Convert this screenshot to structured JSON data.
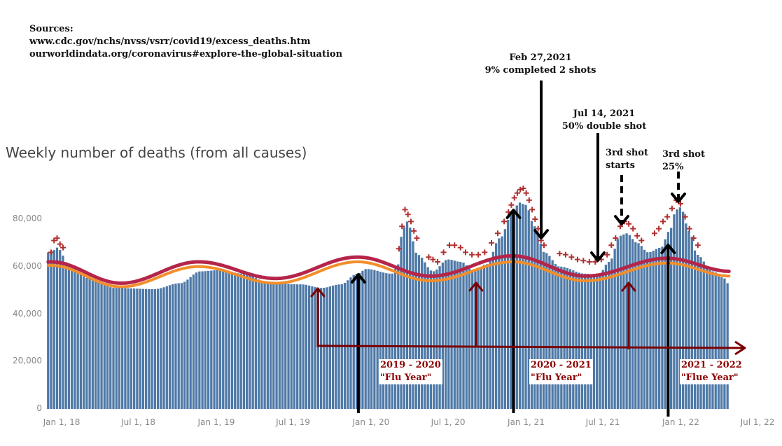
{
  "sources": {
    "heading": "Sources:",
    "line1": "www.cdc.gov/nchs/nvss/vsrr/covid19/excess_deaths.htm",
    "line2": "ourworldindata.org/coronavirus#explore-the-global-situation"
  },
  "annotations": {
    "feb": {
      "line1": "Feb 27,2021",
      "line2": "9% completed 2 shots"
    },
    "jul": {
      "line1": "Jul 14, 2021",
      "line2": "50% double shot"
    },
    "third1": {
      "line1": "3rd shot",
      "line2": "starts"
    },
    "third2": {
      "line1": "3rd shot",
      "line2": "25%"
    }
  },
  "flu_years": {
    "fy1": {
      "line1": "2019 - 2020",
      "line2": "\"Flu Year\""
    },
    "fy2": {
      "line1": "2020 - 2021",
      "line2": "\"Flu Year\""
    },
    "fy3": {
      "line1": "2021 - 2022",
      "line2": "\"Flue Year\""
    }
  },
  "colors": {
    "bar": "#4e79a7",
    "expected_line": "#f28e2b",
    "threshold_line": "#b5254a",
    "excess_marker": "#b03030",
    "arrow_black": "#000000",
    "arrow_red": "#7b0000"
  },
  "chart_data": {
    "type": "bar",
    "title": "Weekly number of deaths (from all causes)",
    "xlabel": "",
    "ylabel": "",
    "ylim": [
      0,
      90000
    ],
    "y_ticks": [
      0,
      20000,
      40000,
      60000,
      80000
    ],
    "y_tick_labels": [
      "0",
      "20,000",
      "40,000",
      "60,000",
      "80,000"
    ],
    "x_ticks": [
      "2018-01-01",
      "2018-07-01",
      "2019-01-01",
      "2019-07-01",
      "2020-01-01",
      "2020-07-01",
      "2021-01-01",
      "2021-07-01",
      "2022-01-01",
      "2022-07-01"
    ],
    "x_tick_labels": [
      "Jan 1, 18",
      "Jul 1, 18",
      "Jan 1, 19",
      "Jul 1, 19",
      "Jan 1, 20",
      "Jul 1, 20",
      "Jan 1, 21",
      "Jul 1, 21",
      "Jan 1, 22",
      "Jul 1, 22"
    ],
    "grid": false,
    "weekly_deaths_keyframes": [
      [
        "2018-01-01",
        66000
      ],
      [
        "2018-01-15",
        68000
      ],
      [
        "2018-02-15",
        60000
      ],
      [
        "2018-04-01",
        55000
      ],
      [
        "2018-06-01",
        51000
      ],
      [
        "2018-09-01",
        50500
      ],
      [
        "2018-11-01",
        53000
      ],
      [
        "2018-12-20",
        58000
      ],
      [
        "2019-02-01",
        58500
      ],
      [
        "2019-04-01",
        57000
      ],
      [
        "2019-06-01",
        53000
      ],
      [
        "2019-08-15",
        52500
      ],
      [
        "2019-10-01",
        51000
      ],
      [
        "2019-11-15",
        52500
      ],
      [
        "2019-12-25",
        57000
      ],
      [
        "2020-01-15",
        59000
      ],
      [
        "2020-03-15",
        57000
      ],
      [
        "2020-03-28",
        60000
      ],
      [
        "2020-04-10",
        76000
      ],
      [
        "2020-04-20",
        79000
      ],
      [
        "2020-05-15",
        65000
      ],
      [
        "2020-06-20",
        58000
      ],
      [
        "2020-07-25",
        63000
      ],
      [
        "2020-08-25",
        62000
      ],
      [
        "2020-09-25",
        58000
      ],
      [
        "2020-10-25",
        61000
      ],
      [
        "2020-11-25",
        72000
      ],
      [
        "2020-12-25",
        83000
      ],
      [
        "2021-01-10",
        87000
      ],
      [
        "2021-01-25",
        86000
      ],
      [
        "2021-02-15",
        77000
      ],
      [
        "2021-03-10",
        66000
      ],
      [
        "2021-04-15",
        60000
      ],
      [
        "2021-06-15",
        57000
      ],
      [
        "2021-07-15",
        56500
      ],
      [
        "2021-08-10",
        62000
      ],
      [
        "2021-09-05",
        73000
      ],
      [
        "2021-09-20",
        74000
      ],
      [
        "2021-10-15",
        70000
      ],
      [
        "2021-11-10",
        66000
      ],
      [
        "2021-12-10",
        68000
      ],
      [
        "2021-12-30",
        75000
      ],
      [
        "2022-01-15",
        84000
      ],
      [
        "2022-01-25",
        85000
      ],
      [
        "2022-02-15",
        75000
      ],
      [
        "2022-03-05",
        65000
      ],
      [
        "2022-04-10",
        58000
      ],
      [
        "2022-05-10",
        55000
      ],
      [
        "2022-05-22",
        51000
      ]
    ],
    "series": [
      {
        "name": "",
        "type": "line",
        "style": "threshold",
        "values": [
          [
            "2018-01-01",
            62000
          ],
          [
            "2018-06-15",
            53000
          ],
          [
            "2018-12-15",
            62000
          ],
          [
            "2019-06-15",
            55000
          ],
          [
            "2019-12-25",
            64000
          ],
          [
            "2020-06-15",
            56000
          ],
          [
            "2020-12-25",
            64500
          ],
          [
            "2021-06-15",
            56000
          ],
          [
            "2021-12-25",
            63500
          ],
          [
            "2022-05-22",
            58000
          ]
        ]
      },
      {
        "name": "",
        "type": "line",
        "style": "expected",
        "values": [
          [
            "2018-01-01",
            60500
          ],
          [
            "2018-06-15",
            51500
          ],
          [
            "2018-12-15",
            60000
          ],
          [
            "2019-06-15",
            53000
          ],
          [
            "2019-12-25",
            62000
          ],
          [
            "2020-06-15",
            54000
          ],
          [
            "2020-12-25",
            62000
          ],
          [
            "2021-06-15",
            54000
          ],
          [
            "2021-12-25",
            61500
          ],
          [
            "2022-05-22",
            56000
          ]
        ]
      },
      {
        "name": "",
        "type": "markers",
        "marker": "+",
        "values": [
          [
            "2018-01-01",
            66000
          ],
          [
            "2018-01-08",
            71000
          ],
          [
            "2018-01-15",
            72000
          ],
          [
            "2018-01-22",
            69500
          ],
          [
            "2018-01-29",
            68000
          ],
          [
            "2020-04-01",
            67500
          ],
          [
            "2020-04-08",
            77000
          ],
          [
            "2020-04-15",
            84000
          ],
          [
            "2020-04-22",
            82000
          ],
          [
            "2020-04-29",
            79000
          ],
          [
            "2020-05-06",
            75000
          ],
          [
            "2020-05-13",
            72000
          ],
          [
            "2020-06-10",
            64000
          ],
          [
            "2020-06-20",
            63000
          ],
          [
            "2020-07-01",
            62000
          ],
          [
            "2020-07-15",
            66000
          ],
          [
            "2020-07-29",
            69000
          ],
          [
            "2020-08-10",
            69000
          ],
          [
            "2020-08-24",
            68000
          ],
          [
            "2020-09-05",
            66000
          ],
          [
            "2020-09-20",
            65000
          ],
          [
            "2020-10-05",
            65000
          ],
          [
            "2020-10-20",
            66000
          ],
          [
            "2020-11-05",
            70000
          ],
          [
            "2020-11-20",
            74000
          ],
          [
            "2020-12-05",
            79000
          ],
          [
            "2020-12-15",
            83000
          ],
          [
            "2020-12-22",
            86000
          ],
          [
            "2020-12-29",
            89000
          ],
          [
            "2021-01-05",
            91000
          ],
          [
            "2021-01-12",
            92500
          ],
          [
            "2021-01-19",
            93000
          ],
          [
            "2021-01-26",
            91000
          ],
          [
            "2021-02-02",
            88000
          ],
          [
            "2021-02-09",
            84000
          ],
          [
            "2021-02-16",
            80000
          ],
          [
            "2021-02-23",
            76000
          ],
          [
            "2021-03-02",
            71000
          ],
          [
            "2021-03-09",
            69000
          ],
          [
            "2021-04-15",
            65500
          ],
          [
            "2021-04-29",
            65000
          ],
          [
            "2021-05-13",
            64000
          ],
          [
            "2021-05-27",
            63000
          ],
          [
            "2021-06-10",
            62500
          ],
          [
            "2021-06-24",
            62000
          ],
          [
            "2021-07-08",
            62000
          ],
          [
            "2021-07-22",
            63000
          ],
          [
            "2021-08-05",
            65000
          ],
          [
            "2021-08-15",
            69000
          ],
          [
            "2021-08-25",
            72000
          ],
          [
            "2021-09-05",
            77000
          ],
          [
            "2021-09-15",
            79000
          ],
          [
            "2021-09-25",
            78000
          ],
          [
            "2021-10-05",
            76000
          ],
          [
            "2021-10-15",
            73000
          ],
          [
            "2021-10-25",
            71000
          ],
          [
            "2021-11-25",
            74000
          ],
          [
            "2021-12-05",
            76000
          ],
          [
            "2021-12-15",
            79000
          ],
          [
            "2021-12-25",
            81000
          ],
          [
            "2022-01-05",
            84500
          ],
          [
            "2022-01-15",
            88000
          ],
          [
            "2022-01-25",
            86500
          ],
          [
            "2022-02-05",
            81000
          ],
          [
            "2022-02-15",
            76000
          ],
          [
            "2022-02-25",
            72000
          ],
          [
            "2022-03-07",
            69000
          ]
        ]
      }
    ]
  }
}
